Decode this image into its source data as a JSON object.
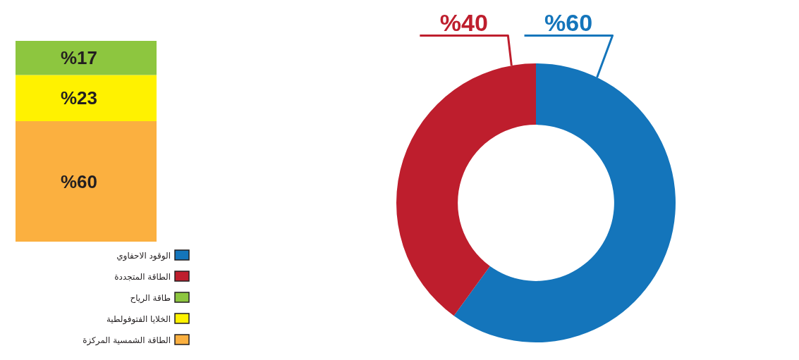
{
  "chart_data": [
    {
      "type": "donut",
      "categories": [
        "الوقود الاحفاوي",
        "الطاقة المتجددة"
      ],
      "values": [
        60,
        40
      ],
      "colors": [
        "#1475bb",
        "#be1e2d"
      ],
      "value_labels": [
        "%60",
        "%40"
      ],
      "legend": "bottom left"
    },
    {
      "type": "bar",
      "stacked": true,
      "categories": [
        null
      ],
      "legend": "bottom right",
      "series": [
        {
          "name": "الطاقة الشمسية المركزة",
          "color": "#fbb040",
          "values": [
            60
          ],
          "value_labels": [
            "%60"
          ]
        },
        {
          "name": "الخلايا الفتوفولطية",
          "color": "#fff200",
          "values": [
            23
          ],
          "value_labels": [
            "%23"
          ]
        },
        {
          "name": "طاقة الرياح",
          "color": "#8dc63f",
          "values": [
            17
          ],
          "value_labels": [
            "%17"
          ]
        }
      ]
    }
  ]
}
